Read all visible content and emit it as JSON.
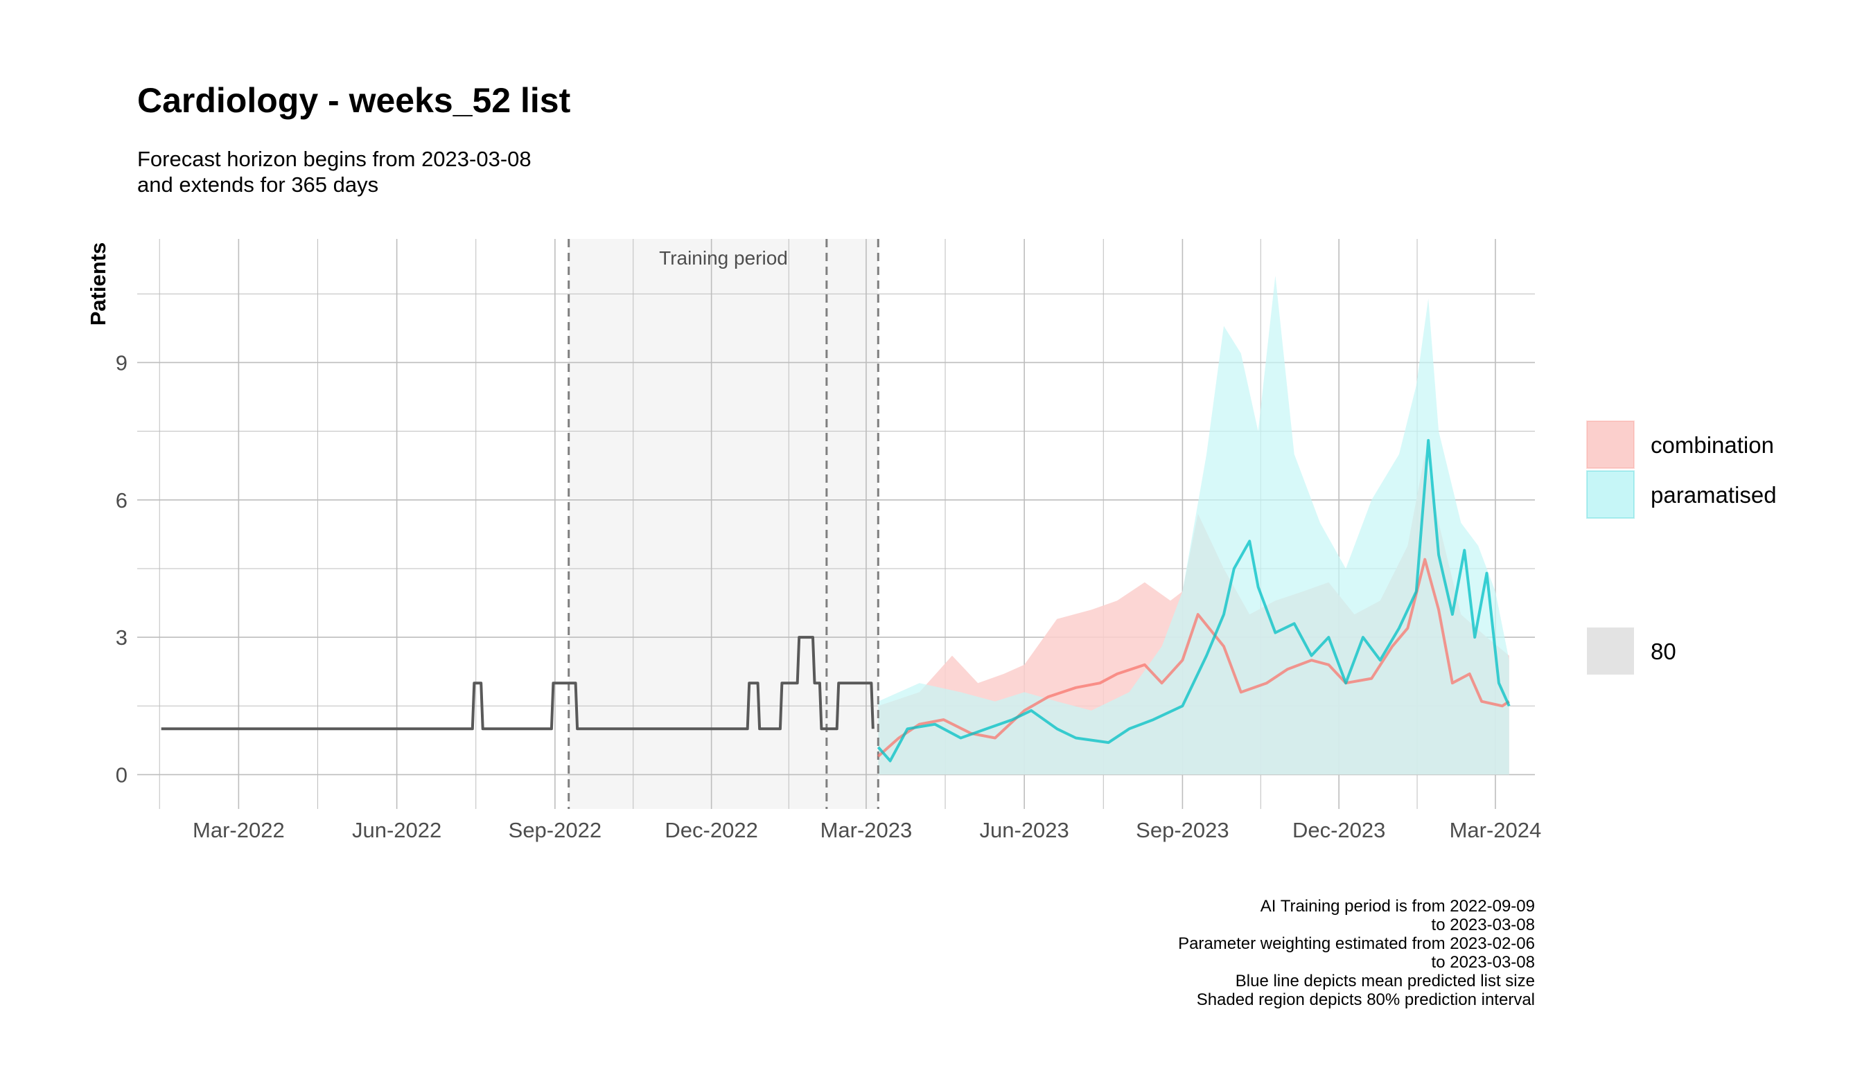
{
  "chart_data": {
    "type": "line",
    "title": "Cardiology - weeks_52 list",
    "subtitle_lines": [
      "Forecast horizon begins from 2023-03-08",
      "and extends for 365 days"
    ],
    "ylabel": "Patients",
    "xlabel": "",
    "x_range": [
      "2022-01-01",
      "2024-03-24"
    ],
    "ylim": [
      -0.75,
      11.7
    ],
    "y_ticks": [
      0,
      3,
      6,
      9
    ],
    "y_tick_labels": [
      "0",
      "3",
      "6",
      "9"
    ],
    "x_ticks": [
      "2022-03-01",
      "2022-06-01",
      "2022-09-01",
      "2022-12-01",
      "2023-03-01",
      "2023-06-01",
      "2023-09-01",
      "2023-12-01",
      "2024-03-01"
    ],
    "x_tick_labels": [
      "Mar-2022",
      "Jun-2022",
      "Sep-2022",
      "Dec-2022",
      "Mar-2023",
      "Jun-2023",
      "Sep-2023",
      "Dec-2023",
      "Mar-2024"
    ],
    "grid": true,
    "legend_position": "right",
    "training_period": {
      "start": "2022-09-09",
      "end": "2023-03-08",
      "label": "Training period"
    },
    "vlines": [
      "2022-09-09",
      "2023-02-06",
      "2023-03-08"
    ],
    "history": {
      "color": "#595959",
      "points": [
        [
          "2022-01-15",
          1
        ],
        [
          "2022-07-15",
          1
        ],
        [
          "2022-07-16",
          2
        ],
        [
          "2022-07-20",
          2
        ],
        [
          "2022-07-21",
          1
        ],
        [
          "2022-08-30",
          1
        ],
        [
          "2022-08-31",
          2
        ],
        [
          "2022-09-13",
          2
        ],
        [
          "2022-09-14",
          1
        ],
        [
          "2022-12-22",
          1
        ],
        [
          "2022-12-23",
          2
        ],
        [
          "2022-12-28",
          2
        ],
        [
          "2022-12-29",
          1
        ],
        [
          "2023-01-10",
          1
        ],
        [
          "2023-01-11",
          2
        ],
        [
          "2023-01-20",
          2
        ],
        [
          "2023-01-21",
          3
        ],
        [
          "2023-01-29",
          3
        ],
        [
          "2023-01-30",
          2
        ],
        [
          "2023-02-02",
          2
        ],
        [
          "2023-02-03",
          1
        ],
        [
          "2023-02-12",
          1
        ],
        [
          "2023-02-13",
          2
        ],
        [
          "2023-03-04",
          2
        ],
        [
          "2023-03-05",
          1
        ]
      ]
    },
    "series": [
      {
        "name": "combination",
        "color": "#f8766d",
        "band_color": "#fbcfcc",
        "mean": [
          [
            "2023-03-08",
            0.4
          ],
          [
            "2023-03-20",
            0.8
          ],
          [
            "2023-04-01",
            1.1
          ],
          [
            "2023-04-15",
            1.2
          ],
          [
            "2023-05-01",
            0.9
          ],
          [
            "2023-05-15",
            0.8
          ],
          [
            "2023-06-01",
            1.4
          ],
          [
            "2023-06-15",
            1.7
          ],
          [
            "2023-07-01",
            1.9
          ],
          [
            "2023-07-15",
            2.0
          ],
          [
            "2023-07-25",
            2.2
          ],
          [
            "2023-08-10",
            2.4
          ],
          [
            "2023-08-20",
            2.0
          ],
          [
            "2023-09-01",
            2.5
          ],
          [
            "2023-09-10",
            3.5
          ],
          [
            "2023-09-25",
            2.8
          ],
          [
            "2023-10-05",
            1.8
          ],
          [
            "2023-10-20",
            2.0
          ],
          [
            "2023-11-01",
            2.3
          ],
          [
            "2023-11-15",
            2.5
          ],
          [
            "2023-11-25",
            2.4
          ],
          [
            "2023-12-05",
            2.0
          ],
          [
            "2023-12-20",
            2.1
          ],
          [
            "2024-01-01",
            2.8
          ],
          [
            "2024-01-10",
            3.2
          ],
          [
            "2024-01-20",
            4.7
          ],
          [
            "2024-01-28",
            3.6
          ],
          [
            "2024-02-05",
            2.0
          ],
          [
            "2024-02-15",
            2.2
          ],
          [
            "2024-02-22",
            1.6
          ],
          [
            "2024-03-05",
            1.5
          ],
          [
            "2024-03-09",
            1.6
          ]
        ],
        "lower": [
          [
            "2023-03-08",
            0
          ],
          [
            "2024-03-09",
            0
          ]
        ],
        "upper": [
          [
            "2023-03-08",
            1.5
          ],
          [
            "2023-04-01",
            1.8
          ],
          [
            "2023-04-20",
            2.6
          ],
          [
            "2023-05-05",
            2.0
          ],
          [
            "2023-05-20",
            2.2
          ],
          [
            "2023-06-01",
            2.4
          ],
          [
            "2023-06-20",
            3.4
          ],
          [
            "2023-07-10",
            3.6
          ],
          [
            "2023-07-25",
            3.8
          ],
          [
            "2023-08-10",
            4.2
          ],
          [
            "2023-08-25",
            3.8
          ],
          [
            "2023-09-01",
            4.0
          ],
          [
            "2023-09-10",
            5.7
          ],
          [
            "2023-09-25",
            4.5
          ],
          [
            "2023-10-10",
            3.5
          ],
          [
            "2023-10-25",
            3.8
          ],
          [
            "2023-11-10",
            4.0
          ],
          [
            "2023-11-25",
            4.2
          ],
          [
            "2023-12-10",
            3.5
          ],
          [
            "2023-12-25",
            3.8
          ],
          [
            "2024-01-10",
            5.0
          ],
          [
            "2024-01-20",
            7.0
          ],
          [
            "2024-01-28",
            5.5
          ],
          [
            "2024-02-10",
            3.5
          ],
          [
            "2024-02-25",
            3.0
          ],
          [
            "2024-03-09",
            2.6
          ]
        ]
      },
      {
        "name": "paramatised",
        "color": "#00bfc4",
        "band_color": "#c6f6f7",
        "mean": [
          [
            "2023-03-08",
            0.6
          ],
          [
            "2023-03-15",
            0.3
          ],
          [
            "2023-03-25",
            1.0
          ],
          [
            "2023-04-10",
            1.1
          ],
          [
            "2023-04-25",
            0.8
          ],
          [
            "2023-05-10",
            1.0
          ],
          [
            "2023-05-25",
            1.2
          ],
          [
            "2023-06-05",
            1.4
          ],
          [
            "2023-06-20",
            1.0
          ],
          [
            "2023-07-01",
            0.8
          ],
          [
            "2023-07-20",
            0.7
          ],
          [
            "2023-08-01",
            1.0
          ],
          [
            "2023-08-15",
            1.2
          ],
          [
            "2023-09-01",
            1.5
          ],
          [
            "2023-09-15",
            2.6
          ],
          [
            "2023-09-25",
            3.5
          ],
          [
            "2023-10-01",
            4.5
          ],
          [
            "2023-10-10",
            5.1
          ],
          [
            "2023-10-15",
            4.1
          ],
          [
            "2023-10-25",
            3.1
          ],
          [
            "2023-11-05",
            3.3
          ],
          [
            "2023-11-15",
            2.6
          ],
          [
            "2023-11-25",
            3.0
          ],
          [
            "2023-12-05",
            2.0
          ],
          [
            "2023-12-15",
            3.0
          ],
          [
            "2023-12-25",
            2.5
          ],
          [
            "2024-01-05",
            3.2
          ],
          [
            "2024-01-15",
            4.0
          ],
          [
            "2024-01-22",
            7.3
          ],
          [
            "2024-01-28",
            4.8
          ],
          [
            "2024-02-05",
            3.5
          ],
          [
            "2024-02-12",
            4.9
          ],
          [
            "2024-02-18",
            3.0
          ],
          [
            "2024-02-25",
            4.4
          ],
          [
            "2024-03-03",
            2.0
          ],
          [
            "2024-03-09",
            1.5
          ]
        ],
        "lower": [
          [
            "2023-03-08",
            0
          ],
          [
            "2024-03-09",
            0
          ]
        ],
        "upper": [
          [
            "2023-03-08",
            1.6
          ],
          [
            "2023-04-01",
            2.0
          ],
          [
            "2023-04-25",
            1.8
          ],
          [
            "2023-05-15",
            1.6
          ],
          [
            "2023-06-01",
            1.8
          ],
          [
            "2023-06-20",
            1.6
          ],
          [
            "2023-07-10",
            1.4
          ],
          [
            "2023-08-01",
            1.8
          ],
          [
            "2023-08-20",
            2.8
          ],
          [
            "2023-09-01",
            4.0
          ],
          [
            "2023-09-15",
            7.0
          ],
          [
            "2023-09-25",
            9.8
          ],
          [
            "2023-10-05",
            9.2
          ],
          [
            "2023-10-15",
            7.5
          ],
          [
            "2023-10-25",
            10.9
          ],
          [
            "2023-11-05",
            7.0
          ],
          [
            "2023-11-20",
            5.5
          ],
          [
            "2023-12-05",
            4.5
          ],
          [
            "2023-12-20",
            6.0
          ],
          [
            "2024-01-05",
            7.0
          ],
          [
            "2024-01-15",
            8.5
          ],
          [
            "2024-01-22",
            10.4
          ],
          [
            "2024-01-28",
            7.5
          ],
          [
            "2024-02-10",
            5.5
          ],
          [
            "2024-02-20",
            5.0
          ],
          [
            "2024-03-01",
            4.0
          ],
          [
            "2024-03-09",
            2.5
          ]
        ]
      }
    ],
    "legend_entries": [
      "combination",
      "paramatised"
    ],
    "level_legend_label": "80"
  },
  "caption_lines": [
    "AI Training period is from 2022-09-09",
    "to 2023-03-08",
    "Parameter weighting estimated from 2023-02-06",
    "to 2023-03-08",
    "Blue line depicts mean predicted list size",
    "Shaded region depicts 80% prediction interval"
  ],
  "colors": {
    "grid": "#bdbdbd",
    "training_shade": "#f5f5f5",
    "level_swatch": "#e3e3e3",
    "vline": "#7f7f7f"
  }
}
